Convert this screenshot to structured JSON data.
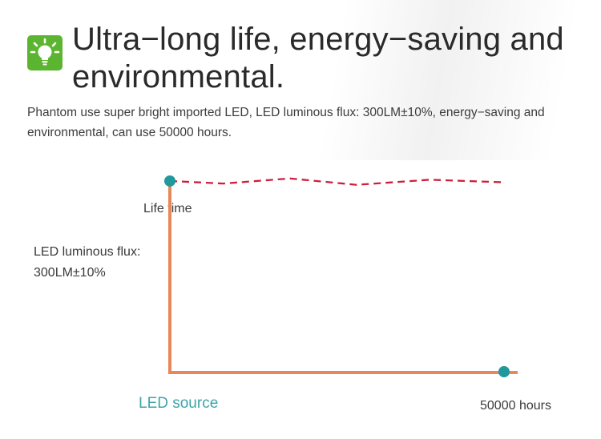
{
  "header": {
    "icon": "lightbulb-icon",
    "title": "Ultra−long life, energy−saving and environmental.",
    "description": "Phantom use super bright imported LED, LED luminous flux: 300LM±10%, energy−saving and environmental, can use 50000 hours."
  },
  "colors": {
    "accent_green": "#5cb531",
    "axis": "#e8875a",
    "dashed_line": "#cc1f3d",
    "marker": "#21989c",
    "source_text": "#3fa5a8"
  },
  "chart_data": {
    "type": "line",
    "ylabel": "Life time",
    "y_point_label": [
      "LED luminous flux:",
      "300LM±10%"
    ],
    "x_end_label": "50000 hours",
    "x_origin_label": "LED source",
    "x_range": [
      0,
      50000
    ],
    "series": [
      {
        "style": "dashed",
        "x": [
          0,
          8000,
          18000,
          28000,
          39000,
          50000
        ],
        "y": [
          300,
          296,
          304,
          294,
          302,
          298
        ]
      }
    ],
    "y_range": [
      0,
      320
    ]
  }
}
